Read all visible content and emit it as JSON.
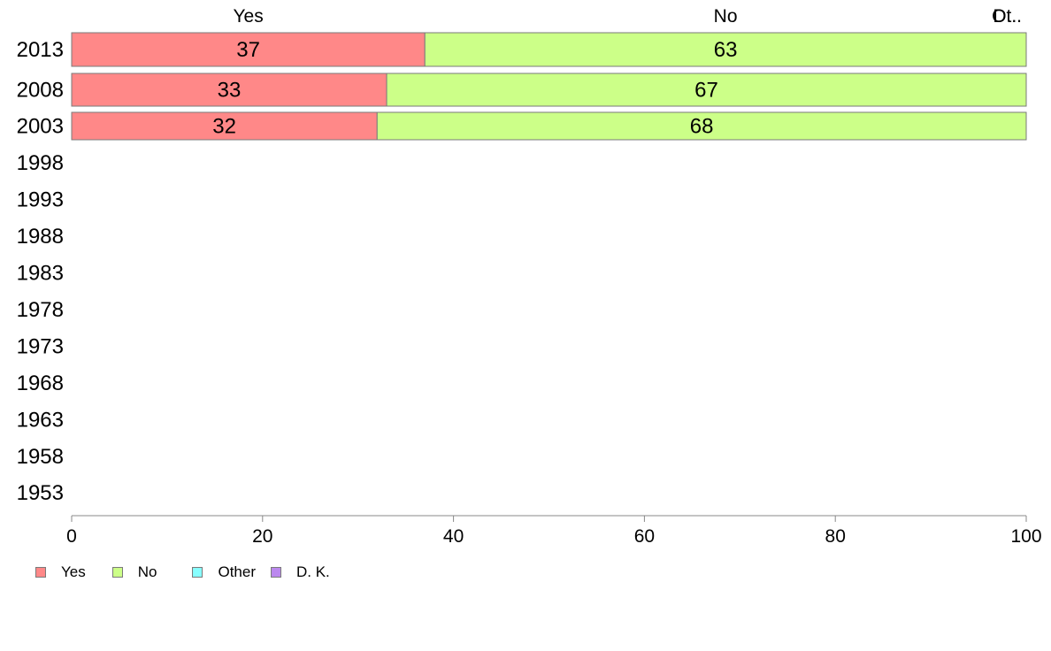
{
  "chart_data": {
    "type": "bar",
    "orientation": "horizontal",
    "stacked": true,
    "categories": [
      "2013",
      "2008",
      "2003",
      "1998",
      "1993",
      "1988",
      "1983",
      "1978",
      "1973",
      "1968",
      "1963",
      "1958",
      "1953"
    ],
    "series": [
      {
        "name": "Yes",
        "color": "#ff8888",
        "values": [
          37,
          33,
          32,
          null,
          null,
          null,
          null,
          null,
          null,
          null,
          null,
          null,
          null
        ],
        "labels": [
          "37",
          "33",
          "32"
        ]
      },
      {
        "name": "No",
        "color": "#ccff88",
        "values": [
          63,
          67,
          68,
          null,
          null,
          null,
          null,
          null,
          null,
          null,
          null,
          null,
          null
        ],
        "labels": [
          "63",
          "67",
          "68"
        ]
      },
      {
        "name": "Other",
        "color": "#88ffff",
        "values": [
          0,
          0,
          0,
          null,
          null,
          null,
          null,
          null,
          null,
          null,
          null,
          null,
          null
        ]
      },
      {
        "name": "D. K.",
        "color": "#bb88ee",
        "values": [
          0,
          0,
          0,
          null,
          null,
          null,
          null,
          null,
          null,
          null,
          null,
          null,
          null
        ]
      }
    ],
    "top_labels": [
      "Yes",
      "No",
      "Ot..",
      "D..."
    ],
    "xlim": [
      0,
      100
    ],
    "xticks": [
      "0",
      "20",
      "40",
      "60",
      "80",
      "100"
    ],
    "grid": false,
    "legend_position": "bottom-left",
    "title": "",
    "xlabel": "",
    "ylabel": ""
  }
}
